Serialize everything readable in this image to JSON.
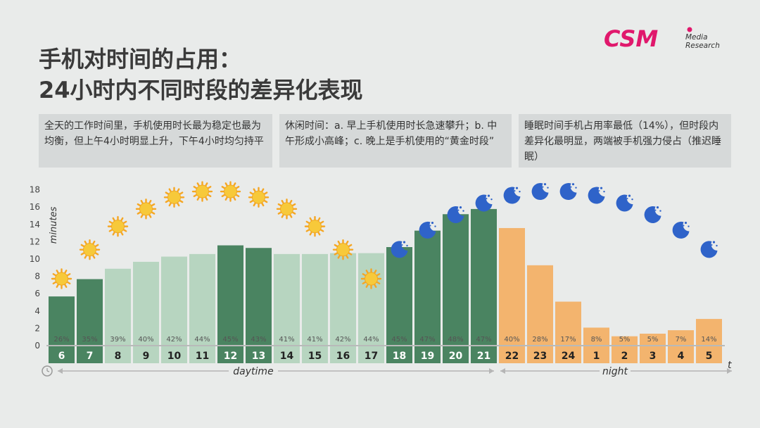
{
  "title": {
    "line1": "手机对时间的占用：",
    "line2": "24小时内不同时段的差异化表现"
  },
  "logo": {
    "main": "CSM",
    "sub1": "Media",
    "sub2": "Research",
    "color": "#e0186c"
  },
  "notes": [
    "全天的工作时间里，手机使用时长最为稳定也最为均衡，但上午4小时明显上升，下午4小时均匀持平",
    "休闲时间：a. 早上手机使用时长急速攀升；b. 中午形成小高峰；c. 晚上是手机使用的“黄金时段”",
    "睡眠时间手机占用率最低（14%），但时段内差异化最明显，两端被手机强力侵占（推迟睡眠）"
  ],
  "chart_data": {
    "type": "bar",
    "ylabel": "minutes",
    "xlabel": "t",
    "ylim": [
      0,
      18
    ],
    "yticks": [
      0,
      2,
      4,
      6,
      8,
      10,
      12,
      14,
      16,
      18
    ],
    "categories": [
      "6",
      "7",
      "8",
      "9",
      "10",
      "11",
      "12",
      "13",
      "14",
      "15",
      "16",
      "17",
      "18",
      "19",
      "20",
      "21",
      "22",
      "23",
      "24",
      "1",
      "2",
      "3",
      "4",
      "5"
    ],
    "values": [
      5.6,
      7.6,
      8.8,
      9.6,
      10.2,
      10.5,
      11.5,
      11.2,
      10.5,
      10.5,
      10.6,
      10.6,
      11.3,
      13.2,
      15.1,
      15.7,
      13.5,
      9.2,
      5.0,
      2.0,
      1.0,
      1.3,
      1.7,
      3.0
    ],
    "percent_labels": [
      "26%",
      "35%",
      "39%",
      "40%",
      "42%",
      "44%",
      "45%",
      "43%",
      "41%",
      "41%",
      "42%",
      "44%",
      "45%",
      "47%",
      "48%",
      "47%",
      "40%",
      "28%",
      "17%",
      "8%",
      "5%",
      "5%",
      "7%",
      "14%"
    ],
    "period": [
      "leisure",
      "leisure",
      "work",
      "work",
      "work",
      "work",
      "leisure",
      "leisure",
      "work",
      "work",
      "work",
      "work",
      "leisure",
      "leisure",
      "leisure",
      "leisure",
      "sleep",
      "sleep",
      "sleep",
      "sleep",
      "sleep",
      "sleep",
      "sleep",
      "sleep"
    ],
    "icons": [
      "sun",
      "sun",
      "sun",
      "sun",
      "sun",
      "sun",
      "sun",
      "sun",
      "sun",
      "sun",
      "sun",
      "sun",
      "moon",
      "moon",
      "moon",
      "moon",
      "moon",
      "moon",
      "moon",
      "moon",
      "moon",
      "moon",
      "moon",
      "moon"
    ],
    "colors": {
      "leisure": "#4a8461",
      "work": "#b7d5c0",
      "sleep": "#f3b46e",
      "sun": "#f7c93a",
      "moon": "#2f63c9"
    },
    "range_labels": {
      "daytime": "daytime",
      "night": "night"
    }
  }
}
